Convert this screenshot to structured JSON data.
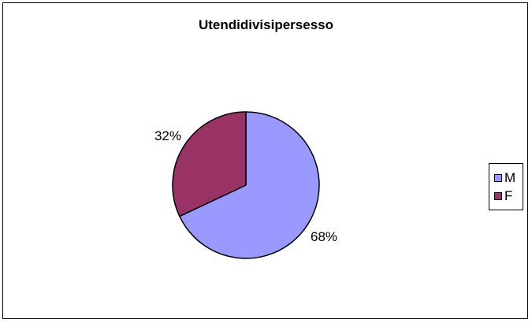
{
  "chart_data": {
    "type": "pie",
    "title": "Utendidivisipersesso",
    "categories": [
      "M",
      "F"
    ],
    "values": [
      68,
      32
    ],
    "value_labels": [
      "68%",
      "32%"
    ],
    "colors": [
      "#9999ff",
      "#993366"
    ],
    "legend_position": "right"
  }
}
